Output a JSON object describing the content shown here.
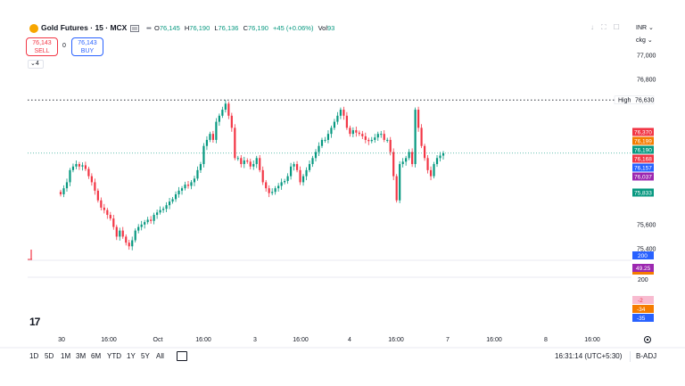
{
  "header": {
    "symbol_title": "Gold Futures · 15 · MCX",
    "ohlc": {
      "o_label": "O",
      "o_value": "76,145",
      "h_label": "H",
      "h_value": "76,190",
      "l_label": "L",
      "l_value": "76,136",
      "c_label": "C",
      "c_value": "76,190",
      "change": "+45 (+0.06%)",
      "vol_label": "Vol",
      "vol_value": "93"
    },
    "currency": "INR",
    "unit": "ckg"
  },
  "trade": {
    "sell_price": "76,143",
    "sell_label": "SELL",
    "spread": "0",
    "buy_price": "76,143",
    "buy_label": "BUY"
  },
  "indicators_toggle": "4",
  "colors": {
    "up": "#089981",
    "down": "#f23645",
    "accent": "#2962ff",
    "orange": "#f57c00",
    "purple": "#9c27b0"
  },
  "chart_data": {
    "type": "candlestick",
    "y_ticks": [
      "77,000",
      "76,800",
      "75,600",
      "75,400"
    ],
    "ylim": [
      75390,
      77100
    ],
    "x_ticks": [
      "30",
      "16:00",
      "Oct",
      "16:00",
      "3",
      "16:00",
      "4",
      "16:00",
      "7",
      "16:00",
      "8",
      "16:00"
    ],
    "high_line": {
      "label": "High",
      "value": 76630,
      "text": "76,630"
    },
    "last_price": 76190,
    "price_labels": [
      {
        "text": "76,370",
        "value": 76370,
        "color": "#f23645"
      },
      {
        "text": "76,199",
        "value": 76199,
        "color": "#f57c00"
      },
      {
        "text": "76,190",
        "value": 76190,
        "color": "#089981"
      },
      {
        "text": "76,168",
        "value": 76168,
        "color": "#f23645"
      },
      {
        "text": "76,157",
        "value": 76157,
        "color": "#2962ff"
      },
      {
        "text": "76,037",
        "value": 76037,
        "color": "#9c27b0"
      },
      {
        "text": "75,833",
        "value": 75833,
        "color": "#089981"
      }
    ],
    "volume_pane": {
      "labels": [
        {
          "text": "200",
          "color": "#2962ff"
        },
        {
          "text": "49.25",
          "color": "#9c27b0"
        },
        {
          "text": "200",
          "color": ""
        }
      ]
    },
    "oscillator_pane": {
      "labels": [
        {
          "text": "-2",
          "color": "#f8bbd0"
        },
        {
          "text": "-34",
          "color": "#f57c00"
        },
        {
          "text": "-35",
          "color": "#2962ff"
        }
      ]
    },
    "series": [
      {
        "name": "",
        "close": [
          75850,
          75900,
          75950,
          76050,
          76080,
          76100,
          76080,
          76090,
          76060,
          76000,
          75950,
          75880,
          75800,
          75740,
          75720,
          75680,
          75650,
          75580,
          75500,
          75550,
          75500,
          75450,
          75420,
          75470,
          75550,
          75580,
          75600,
          75620,
          75640,
          75630,
          75680,
          75700,
          75720,
          75730,
          75760,
          75790,
          75810,
          75850,
          75880,
          75900,
          75930,
          75920,
          75950,
          75980,
          76050,
          76100,
          76250,
          76300,
          76350,
          76300,
          76450,
          76500,
          76550,
          76600,
          76500,
          76400,
          76150,
          76150,
          76100,
          76130,
          76120,
          76080,
          76100,
          76150,
          76050,
          75950,
          75900,
          75860,
          75870,
          75900,
          75920,
          75950,
          75960,
          76000,
          76080,
          76100,
          76050,
          75950,
          76000,
          76050,
          76100,
          76150,
          76200,
          76250,
          76300,
          76300,
          76350,
          76400,
          76450,
          76500,
          76550,
          76500,
          76400,
          76350,
          76380,
          76360,
          76350,
          76330,
          76300,
          76290,
          76300,
          76320,
          76350,
          76350,
          76300,
          76300,
          76200,
          76000,
          75800,
          76100,
          76120,
          76150,
          76200,
          76100,
          76550,
          76400,
          76250,
          76150,
          76050,
          76000,
          76100,
          76150,
          76170,
          76190
        ]
      }
    ]
  },
  "bottom_bar": {
    "ranges": [
      "1D",
      "5D",
      "1M",
      "3M",
      "6M",
      "YTD",
      "1Y",
      "5Y",
      "All"
    ],
    "clock": "16:31:14 (UTC+5:30)",
    "adj_label": "B-ADJ"
  }
}
